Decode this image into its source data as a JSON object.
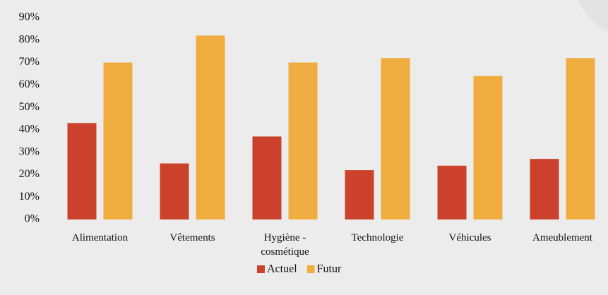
{
  "chart_data": {
    "type": "bar",
    "categories": [
      "Alimentation",
      "Vêtements",
      "Hygiène - cosmétique",
      "Technologie",
      "Véhicules",
      "Ameublement"
    ],
    "series": [
      {
        "name": "Actuel",
        "color": "#cc412b",
        "values": [
          43,
          25,
          37,
          22,
          24,
          27
        ]
      },
      {
        "name": "Futur",
        "color": "#f0ad3f",
        "values": [
          70,
          82,
          70,
          72,
          64,
          72
        ]
      }
    ],
    "ylim": [
      0,
      90
    ],
    "yticks": [
      {
        "value": 0,
        "label": "0%"
      },
      {
        "value": 10,
        "label": "10%"
      },
      {
        "value": 20,
        "label": "20%"
      },
      {
        "value": 30,
        "label": "30%"
      },
      {
        "value": 40,
        "label": "40%"
      },
      {
        "value": 50,
        "label": "50%"
      },
      {
        "value": 60,
        "label": "60%"
      },
      {
        "value": 70,
        "label": "70%"
      },
      {
        "value": 80,
        "label": "80%"
      },
      {
        "value": 90,
        "label": "90%"
      }
    ],
    "grid": false,
    "legend": "bottom"
  }
}
